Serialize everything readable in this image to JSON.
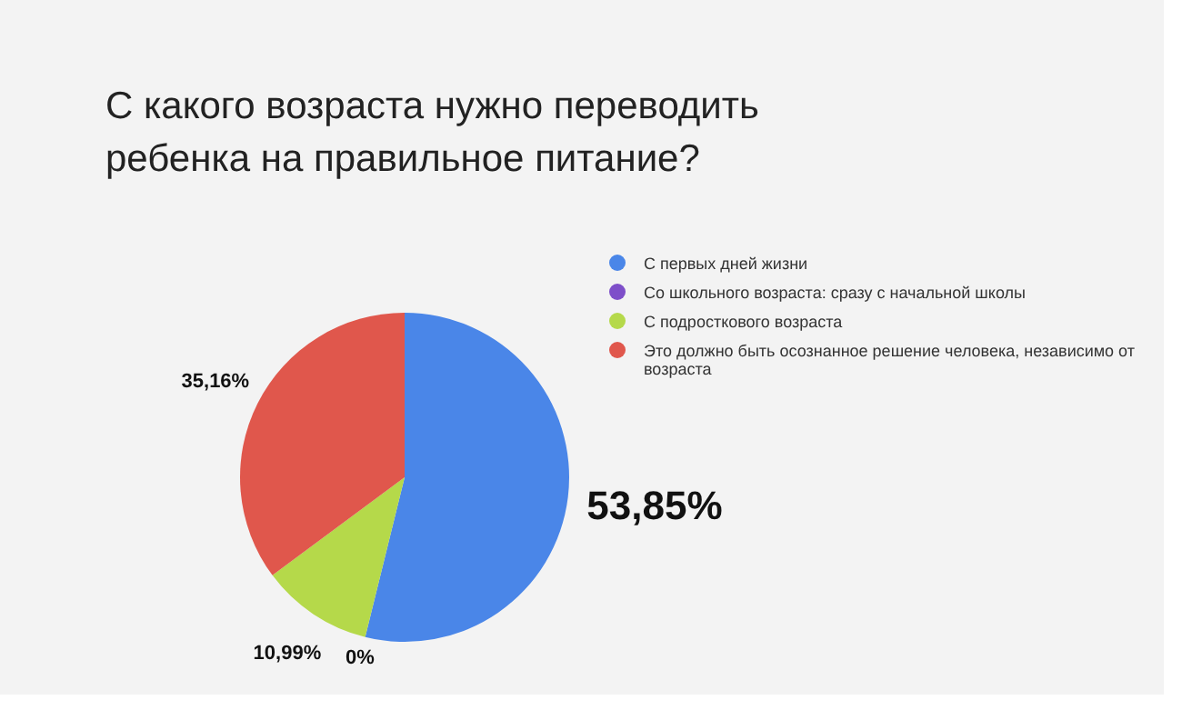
{
  "chart_data": {
    "type": "pie",
    "title": "С какого возраста нужно переводить ребенка на правильное питание?",
    "categories": [
      "С первых дней жизни",
      "Со школьного возраста: сразу с начальной школы",
      "С подросткового возраста",
      "Это должно быть осознанное решение человека, независимо от возраста"
    ],
    "values": [
      53.85,
      0,
      10.99,
      35.16
    ],
    "colors": [
      "#4a86e8",
      "#7e4fc9",
      "#b5d94a",
      "#e0574c"
    ],
    "value_labels": [
      "53,85%",
      "0%",
      "10,99%",
      "35,16%"
    ],
    "legend": "right"
  }
}
